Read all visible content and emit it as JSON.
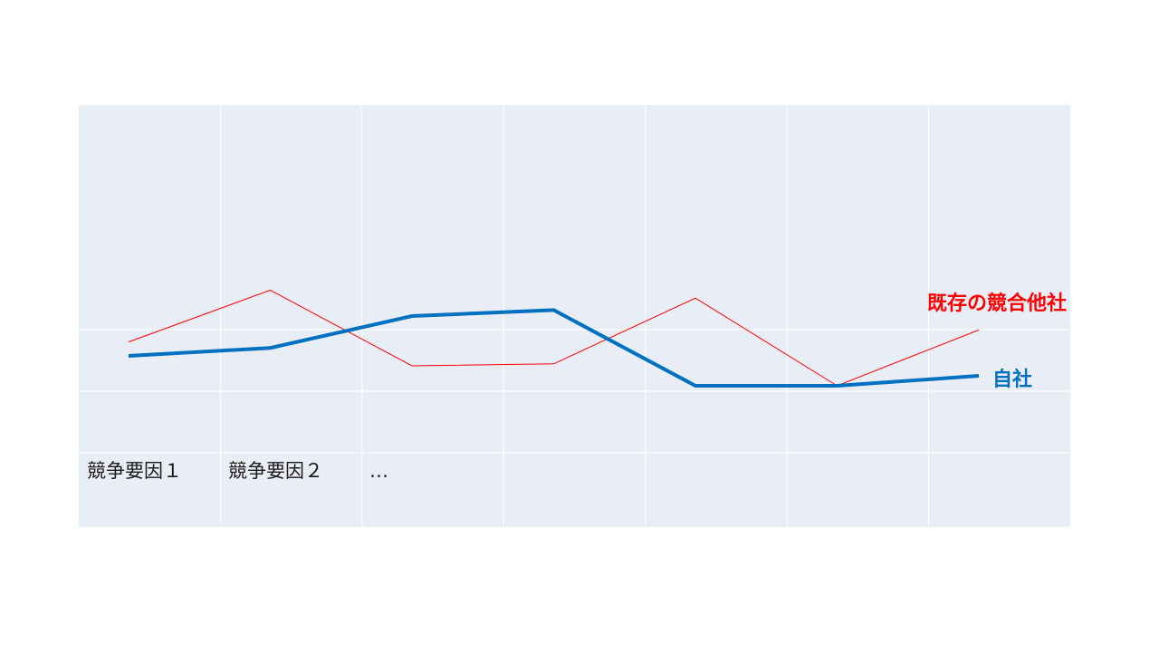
{
  "colors": {
    "background": "#e9edf5",
    "grid": "#ffffff",
    "competitor": "#ff0000",
    "own": "#0070c0",
    "label_text": "#1a1a1a"
  },
  "factors": [
    "競争要因１",
    "競争要因２",
    "…"
  ],
  "chart_data": {
    "type": "line",
    "title": "",
    "xlabel": "",
    "ylabel": "",
    "grid": true,
    "categories": [
      "競争要因１",
      "競争要因２",
      "…",
      "",
      "",
      "",
      ""
    ],
    "ylim": [
      0,
      100
    ],
    "series": [
      {
        "name": "既存の競合他社",
        "color": "#ff0000",
        "values": [
          42,
          68,
          30,
          31,
          64,
          20,
          48
        ]
      },
      {
        "name": "自社",
        "color": "#0070c0",
        "values": [
          35,
          39,
          55,
          58,
          20,
          20,
          25
        ]
      }
    ]
  }
}
